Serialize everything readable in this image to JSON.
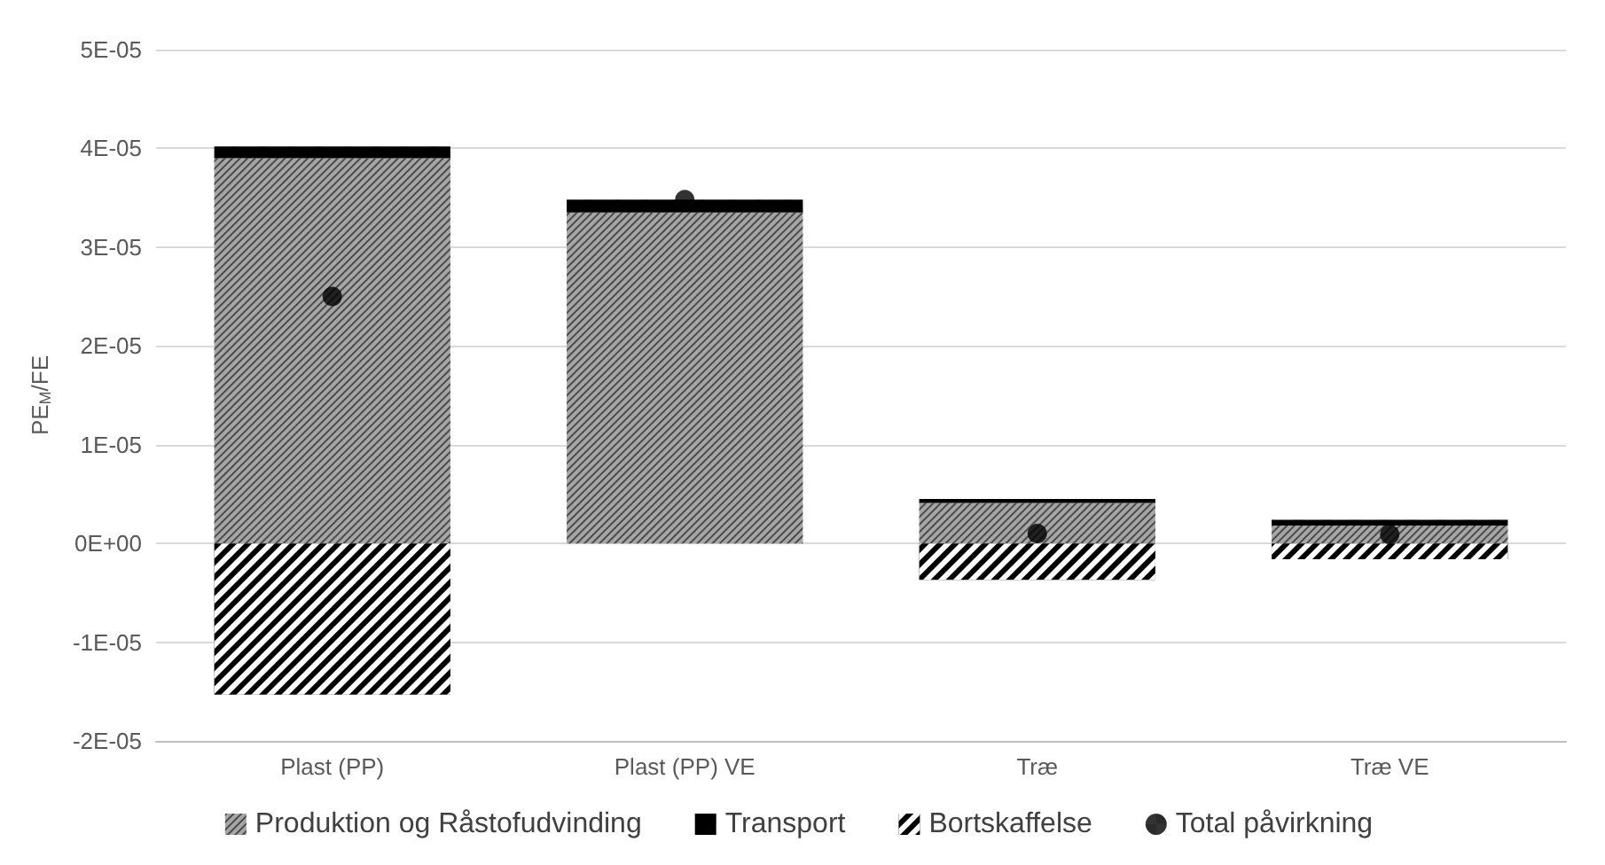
{
  "chart_data": {
    "type": "bar",
    "stacked": true,
    "ylabel": "PE$_{M}$/FE",
    "categories": [
      "Plast (PP)",
      "Plast (PP) VE",
      "Træ",
      "Træ VE"
    ],
    "series": [
      {
        "name": "Produktion og Råstofudvinding",
        "color": "#a6a6a6",
        "values": [
          3.9e-05,
          3.35e-05,
          4.1e-06,
          1.8e-06
        ]
      },
      {
        "name": "Transport",
        "color": "#000000",
        "values": [
          1.2e-06,
          1.3e-06,
          4e-07,
          6e-07
        ]
      },
      {
        "name": "Bortskaffelse",
        "color": "#000000",
        "values": [
          -1.53e-05,
          0,
          -3.7e-06,
          -1.6e-06
        ]
      },
      {
        "name": "Total påvirkning",
        "type": "scatter",
        "color": "#000000",
        "x": [
          "Plast (PP)",
          "Plast (PP) VE",
          "Træ",
          "Træ VE"
        ],
        "values": [
          2.5e-05,
          3.48e-05,
          1e-06,
          9e-07
        ]
      }
    ],
    "ylim": [
      -2e-05,
      5e-05
    ],
    "yticks": [
      {
        "value": -2e-05,
        "label": "-2E-05"
      },
      {
        "value": -1e-05,
        "label": "-1E-05"
      },
      {
        "value": 0,
        "label": "0E+00"
      },
      {
        "value": 1e-05,
        "label": "1E-05"
      },
      {
        "value": 2e-05,
        "label": "2E-05"
      },
      {
        "value": 3e-05,
        "label": "3E-05"
      },
      {
        "value": 4e-05,
        "label": "4E-05"
      },
      {
        "value": 5e-05,
        "label": "5E-05"
      }
    ],
    "grid": "y",
    "legend": "bottom",
    "marker": "circle"
  }
}
